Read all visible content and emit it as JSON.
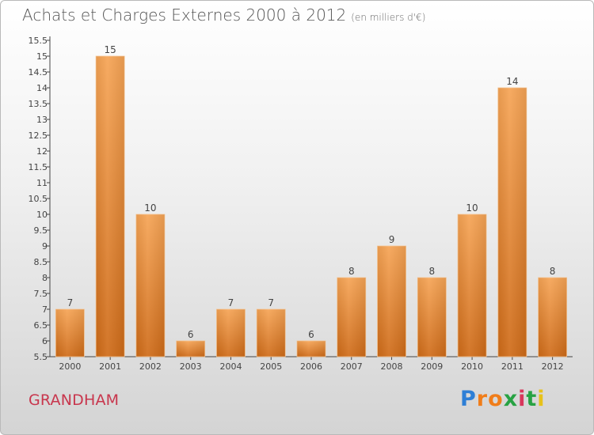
{
  "chart_data": {
    "type": "bar",
    "title": "Achats et Charges Externes 2000 à 2012",
    "subtitle": "(en milliers d'€)",
    "categories": [
      "2000",
      "2001",
      "2002",
      "2003",
      "2004",
      "2005",
      "2006",
      "2007",
      "2008",
      "2009",
      "2010",
      "2011",
      "2012"
    ],
    "values": [
      7,
      15,
      10,
      6,
      7,
      7,
      6,
      8,
      9,
      8,
      10,
      14,
      8
    ],
    "value_labels": [
      "7",
      "15",
      "10",
      "6",
      "7",
      "7",
      "6",
      "8",
      "9",
      "8",
      "10",
      "14",
      "8"
    ],
    "ylim": [
      5.5,
      15.5
    ],
    "yticks": [
      "5.5",
      "6",
      "6.5",
      "7",
      "7.5",
      "8",
      "8.5",
      "9",
      "9.5",
      "10",
      "10.5",
      "11",
      "11.5",
      "12",
      "12.5",
      "13",
      "13.5",
      "14",
      "14.5",
      "15",
      "15.5"
    ],
    "xlabel": "",
    "ylabel": "",
    "grid": false,
    "bar_color": "#f0963c"
  },
  "place_name": "GRANDHAM",
  "logo_letters": [
    "P",
    "r",
    "o",
    "x",
    "i",
    "t",
    "i"
  ],
  "logo_colors": [
    "#2e7fd6",
    "#f07d1a",
    "#f07d1a",
    "#27a243",
    "#d8375c",
    "#27a243",
    "#e7c21a"
  ]
}
